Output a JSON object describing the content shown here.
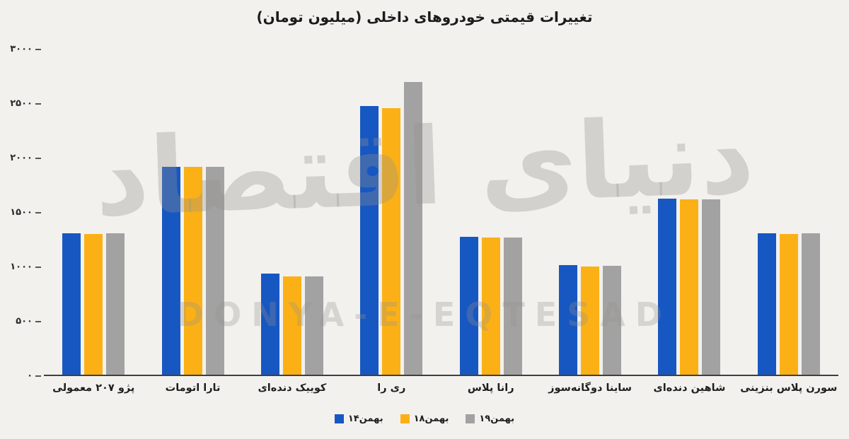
{
  "watermark": {
    "farsi": "دنیای اقتصاد",
    "latin": "DONYA-E-EQTESAD"
  },
  "chart_data": {
    "type": "bar",
    "title": "تغییرات قیمتی خودروهای داخلی (میلیون تومان)",
    "xlabel": "",
    "ylabel": "",
    "ylim": [
      0,
      3000
    ],
    "grid": false,
    "legend_position": "bottom",
    "categories": [
      "پژو ۲۰۷ معمولی",
      "تارا اتومات",
      "کوییک دنده‌ای",
      "ری را",
      "رانا پلاس",
      "ساینا دوگانه‌سوز",
      "شاهین دنده‌ای",
      "سورن پلاس بنزینی"
    ],
    "series": [
      {
        "name": "۱۴بهمن",
        "color": "#1757c2",
        "values": [
          1305,
          1920,
          930,
          2480,
          1270,
          1010,
          1625,
          1305
        ]
      },
      {
        "name": "۱۸بهمن",
        "color": "#fbb116",
        "values": [
          1300,
          1915,
          905,
          2460,
          1265,
          1000,
          1615,
          1300
        ]
      },
      {
        "name": "۱۹بهمن",
        "color": "#a2a2a2",
        "values": [
          1305,
          1915,
          905,
          2700,
          1265,
          1005,
          1615,
          1305
        ]
      }
    ],
    "yticks": [
      {
        "label": "۰",
        "value": 0
      },
      {
        "label": "۵۰۰",
        "value": 500
      },
      {
        "label": "۱۰۰۰",
        "value": 1000
      },
      {
        "label": "۱۵۰۰",
        "value": 1500
      },
      {
        "label": "۲۰۰۰",
        "value": 2000
      },
      {
        "label": "۲۵۰۰",
        "value": 2500
      },
      {
        "label": "۳۰۰۰",
        "value": 3000
      }
    ]
  }
}
